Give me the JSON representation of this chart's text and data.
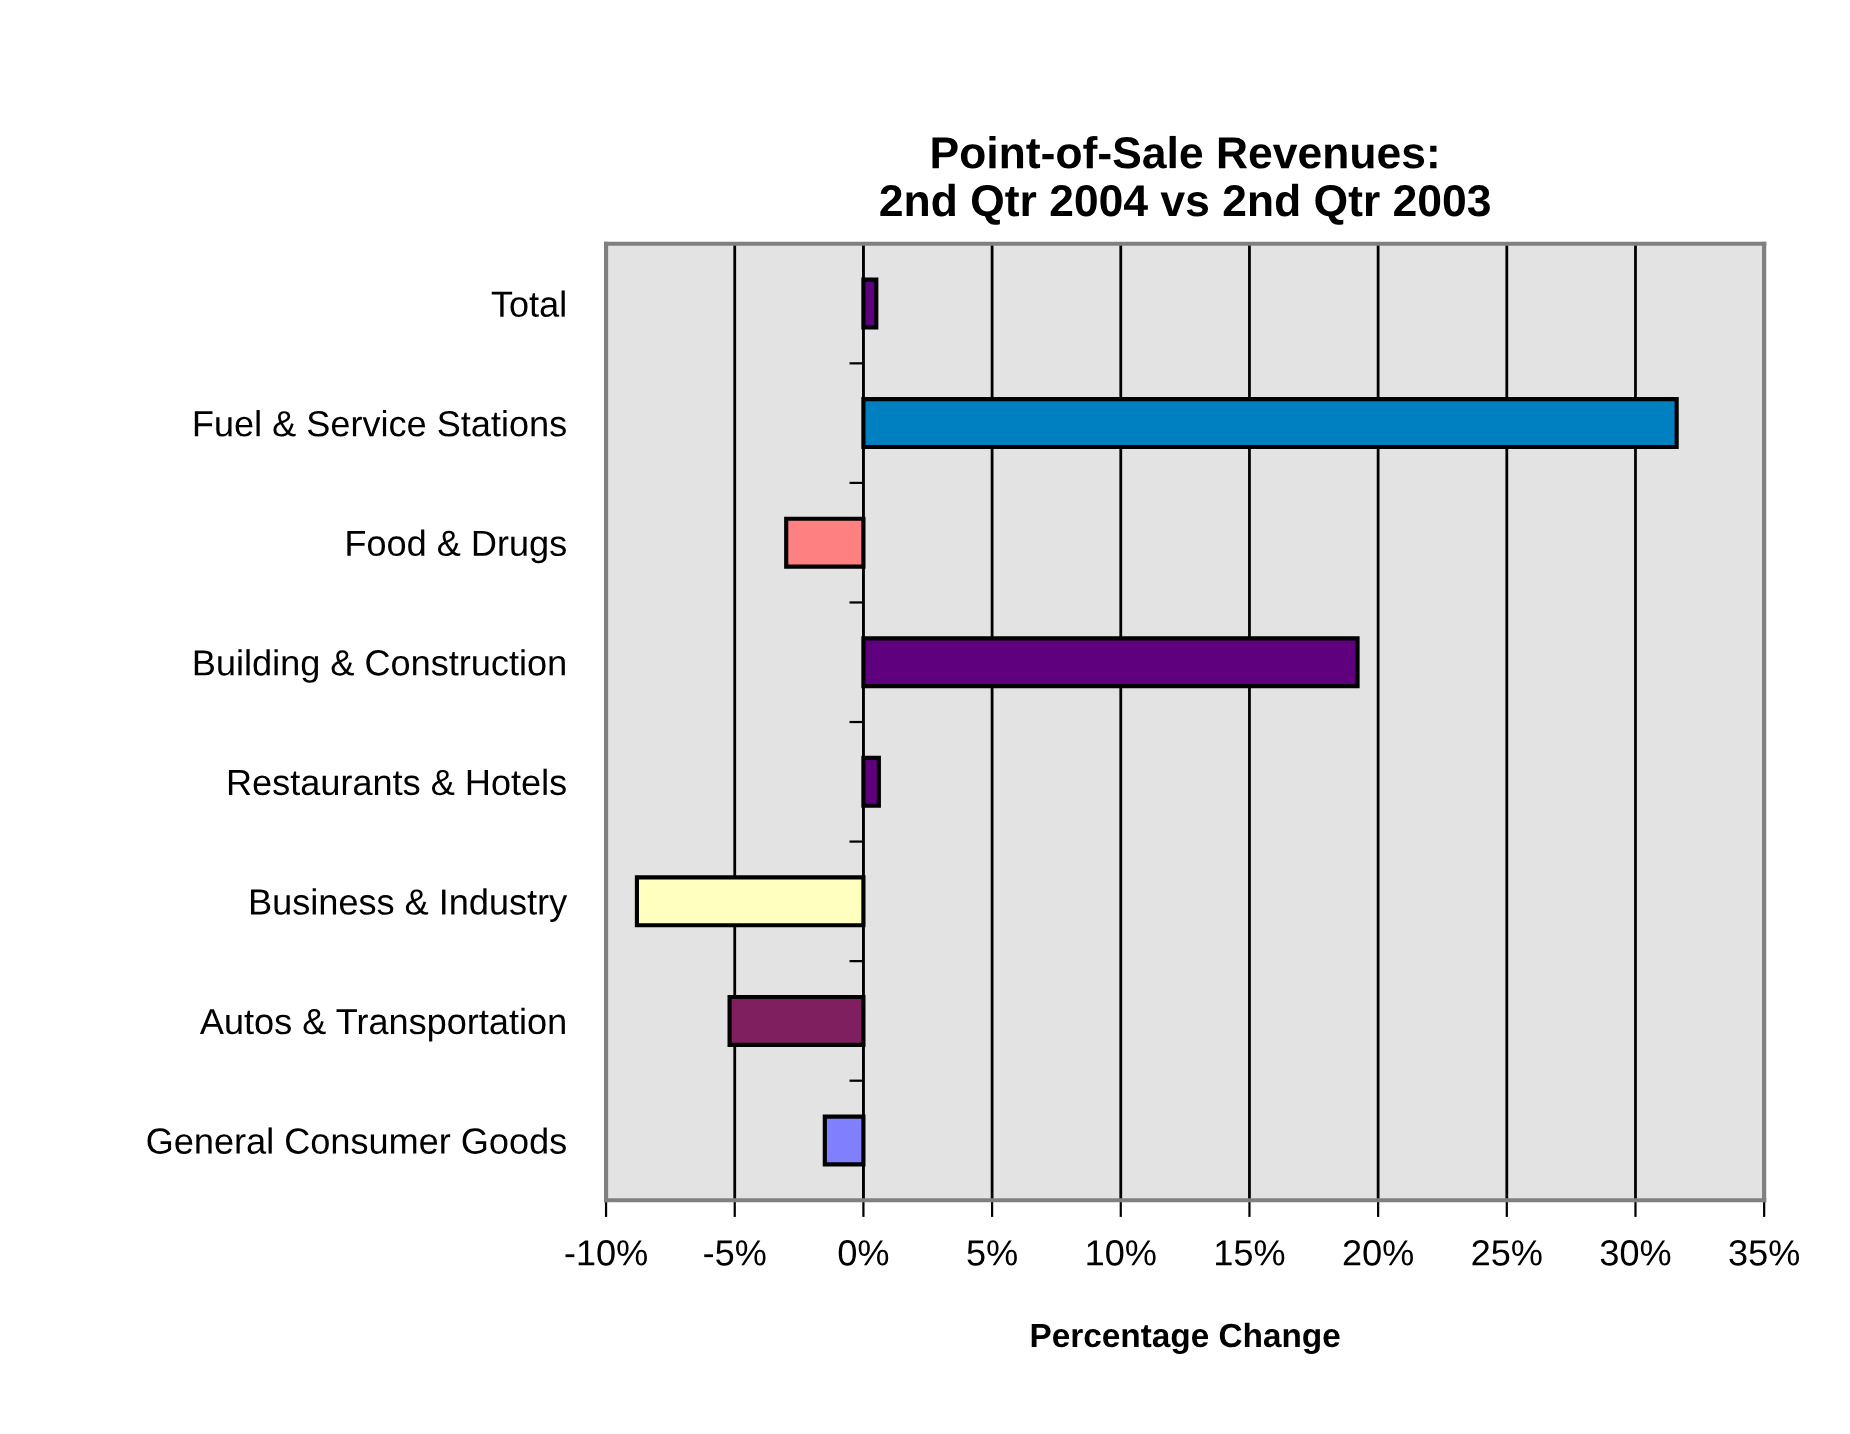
{
  "chart_data": {
    "type": "bar",
    "orientation": "horizontal",
    "title": "Point-of-Sale Revenues:\n2nd Qtr 2004 vs 2nd Qtr 2003",
    "xlabel": "Percentage Change",
    "categories": [
      "Total",
      "Fuel & Service Stations",
      "Food & Drugs",
      "Building & Construction",
      "Restaurants & Hotels",
      "Business & Industry",
      "Autos & Transportation",
      "General Consumer Goods"
    ],
    "values": [
      0.5,
      31.6,
      -3.0,
      19.2,
      0.6,
      -8.8,
      -5.2,
      -1.5
    ],
    "colors": [
      "#5f007f",
      "#0080c0",
      "#ff8080",
      "#5f007f",
      "#5f007f",
      "#ffffc0",
      "#7f1f5f",
      "#8080ff"
    ],
    "xlim": [
      -10,
      35
    ],
    "xticks": [
      {
        "value": -10,
        "label": "-10%"
      },
      {
        "value": -5,
        "label": "-5%"
      },
      {
        "value": 0,
        "label": "0%"
      },
      {
        "value": 5,
        "label": "5%"
      },
      {
        "value": 10,
        "label": "10%"
      },
      {
        "value": 15,
        "label": "15%"
      },
      {
        "value": 20,
        "label": "20%"
      },
      {
        "value": 25,
        "label": "25%"
      },
      {
        "value": 30,
        "label": "30%"
      },
      {
        "value": 35,
        "label": "35%"
      }
    ],
    "grid": "x",
    "legend": false
  }
}
